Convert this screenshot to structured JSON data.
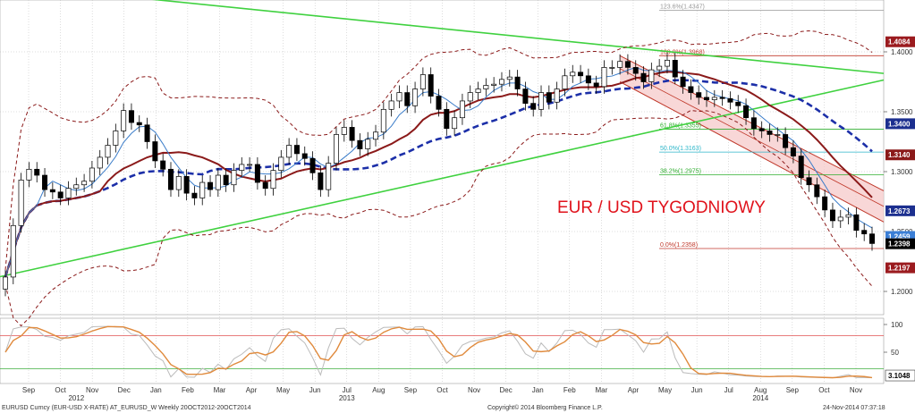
{
  "chart_data": {
    "type": "candlestick",
    "title": "EUR / USD TYGODNIOWY",
    "ylim": [
      1.18,
      1.44
    ],
    "y_ticks": [
      "1.4000",
      "1.3500",
      "1.3000",
      "1.2500",
      "1.2000"
    ],
    "month_labels": [
      "Sep",
      "Oct",
      "Nov",
      "Dec",
      "Jan",
      "Feb",
      "Mar",
      "Apr",
      "May",
      "Jun",
      "Jul",
      "Aug",
      "Sep",
      "Oct",
      "Nov",
      "Dec",
      "Jan",
      "Feb",
      "Mar",
      "Apr",
      "May",
      "Jun",
      "Jul",
      "Aug",
      "Sep",
      "Oct",
      "Nov"
    ],
    "year_labels": [
      "2012",
      "2013",
      "2014"
    ],
    "price_badges": [
      {
        "label": "1.4084",
        "value": 1.4084,
        "color": "#9b1b1f"
      },
      {
        "label": "1.3400",
        "value": 1.34,
        "color": "#1c2f8f"
      },
      {
        "label": "1.3140",
        "value": 1.314,
        "color": "#8b1a1a"
      },
      {
        "label": "1.2673",
        "value": 1.2673,
        "color": "#1c2f8f"
      },
      {
        "label": "1.2459",
        "value": 1.2459,
        "color": "#3b7fd6"
      },
      {
        "label": "1.2398",
        "value": 1.2398,
        "color": "#000000"
      },
      {
        "label": "1.2197",
        "value": 1.2197,
        "color": "#9b1b1f"
      }
    ],
    "fibonacci": [
      {
        "label": "123.6%(1.4347)",
        "value": 1.4347,
        "color": "#999999"
      },
      {
        "label": "100.0%(1.3968)",
        "value": 1.3968,
        "color": "#c0392b"
      },
      {
        "label": "61.8%(1.3355)",
        "value": 1.3355,
        "color": "#2fae2f"
      },
      {
        "label": "50.0%(1.3163)",
        "value": 1.3163,
        "color": "#2bb6c9"
      },
      {
        "label": "38.2%(1.2975)",
        "value": 1.2975,
        "color": "#2fae2f"
      },
      {
        "label": "0.0%(1.2358)",
        "value": 1.2358,
        "color": "#c0392b"
      }
    ],
    "indicator_ticks": [
      "100",
      "50"
    ],
    "indicator_badge": "3.1048",
    "series": [
      {
        "name": "EURUSD weekly close",
        "values": [
          1.212,
          1.255,
          1.293,
          1.302,
          1.297,
          1.285,
          1.283,
          1.278,
          1.286,
          1.289,
          1.292,
          1.303,
          1.312,
          1.322,
          1.334,
          1.351,
          1.341,
          1.339,
          1.325,
          1.309,
          1.302,
          1.285,
          1.296,
          1.282,
          1.278,
          1.291,
          1.285,
          1.297,
          1.289,
          1.301,
          1.306,
          1.306,
          1.291,
          1.286,
          1.301,
          1.312,
          1.322,
          1.315,
          1.311,
          1.299,
          1.285,
          1.307,
          1.331,
          1.337,
          1.326,
          1.319,
          1.327,
          1.333,
          1.352,
          1.359,
          1.366,
          1.355,
          1.369,
          1.381,
          1.363,
          1.352,
          1.336,
          1.345,
          1.359,
          1.366,
          1.369,
          1.372,
          1.373,
          1.377,
          1.379,
          1.369,
          1.357,
          1.352,
          1.366,
          1.358,
          1.369,
          1.38,
          1.383,
          1.38,
          1.374,
          1.371,
          1.387,
          1.387,
          1.392,
          1.387,
          1.382,
          1.375,
          1.385,
          1.388,
          1.393,
          1.379,
          1.371,
          1.366,
          1.362,
          1.36,
          1.362,
          1.361,
          1.358,
          1.355,
          1.345,
          1.336,
          1.334,
          1.331,
          1.331,
          1.32,
          1.313,
          1.295,
          1.289,
          1.279,
          1.268,
          1.259,
          1.262,
          1.264,
          1.251,
          1.248,
          1.24
        ]
      }
    ]
  },
  "footer": {
    "left": "EURUSD Curncy (EUR-USD X-RATE) AT_EURUSD_W  Weekly 20OCT2012-20OCT2014",
    "center": "Copyright© 2014 Bloomberg Finance L.P.",
    "right": "24-Nov-2014 07:37:18"
  },
  "colors": {
    "bull": "#ffffff",
    "bear": "#000000",
    "ma_fast": "#3a7cc9",
    "ma_slow": "#8b1a1a",
    "ma_dashed": "#1c2fa8",
    "bands": "#8b1a1a",
    "trend": "#3fd13f",
    "channel_fill": "#f6c9c9",
    "channel_edge": "#c0392b"
  }
}
